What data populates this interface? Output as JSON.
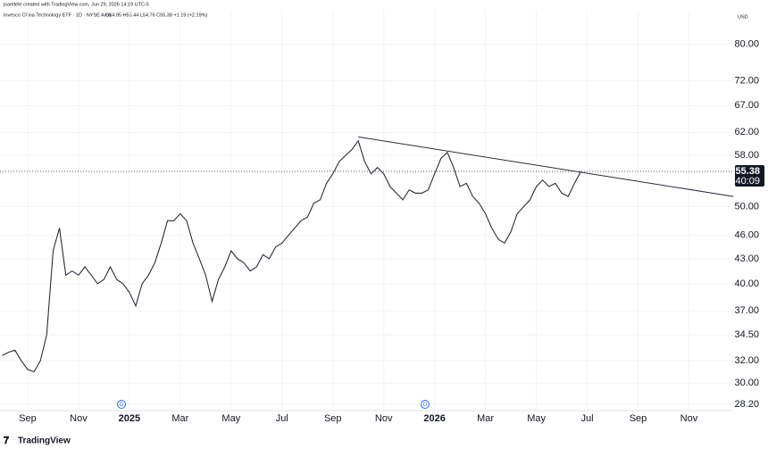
{
  "chart_data": {
    "type": "line",
    "attribution": "jsaettele created with TradingView.com, Jun 29, 2026 14:19 UTC-5",
    "title": "Invesco China Technology ETF · 1D · NYSE Arca",
    "ohlc_text": "O54.95 H55.44 L54.76 C55.38 +1.19 (+2.19%)",
    "currency": "USD",
    "log_scale": true,
    "grid": true,
    "ylim": [
      27.7,
      88.2
    ],
    "yticks": [
      {
        "value": 80,
        "label": "80.00"
      },
      {
        "value": 72,
        "label": "72.00"
      },
      {
        "value": 67,
        "label": "67.00"
      },
      {
        "value": 62,
        "label": "62.00"
      },
      {
        "value": 58,
        "label": "58.00"
      },
      {
        "value": 50,
        "label": "50.00"
      },
      {
        "value": 46,
        "label": "46.00"
      },
      {
        "value": 43,
        "label": "43.00"
      },
      {
        "value": 40,
        "label": "40.00"
      },
      {
        "value": 37,
        "label": "37.00"
      },
      {
        "value": 34.5,
        "label": "34.50"
      },
      {
        "value": 32,
        "label": "32.00"
      },
      {
        "value": 30,
        "label": "30.00"
      },
      {
        "value": 28.2,
        "label": "28.20"
      }
    ],
    "last_price": 55.38,
    "countdown": "40:09",
    "event_markers": [
      "D",
      "D"
    ],
    "logo": "TradingView",
    "categories": [
      null,
      null,
      null,
      null,
      "Sep",
      null,
      null,
      null,
      null,
      null,
      null,
      null,
      "Nov",
      null,
      null,
      null,
      null,
      null,
      null,
      null,
      "2025",
      null,
      null,
      null,
      null,
      null,
      null,
      null,
      "Mar",
      null,
      null,
      null,
      null,
      null,
      null,
      null,
      "May",
      null,
      null,
      null,
      null,
      null,
      null,
      null,
      "Jul",
      null,
      null,
      null,
      null,
      null,
      null,
      null,
      "Sep",
      null,
      null,
      null,
      null,
      null,
      null,
      null,
      "Nov",
      null,
      null,
      null,
      null,
      null,
      null,
      null,
      "2026",
      null,
      null,
      null,
      null,
      null,
      null,
      null,
      "Mar",
      null,
      null,
      null,
      null,
      null,
      null,
      null,
      "May",
      null,
      null,
      null,
      null,
      null,
      null,
      null,
      "Jul",
      null,
      null,
      null,
      null,
      null,
      null,
      null,
      "Sep",
      null,
      null,
      null,
      null,
      null,
      null,
      null,
      "Nov",
      null,
      null,
      null,
      null,
      null,
      null,
      null
    ],
    "series": [
      {
        "name": "Close",
        "color": "#2a2e39",
        "values": [
          32.5,
          32.8,
          33,
          32,
          31.2,
          31,
          32,
          34.5,
          44,
          47,
          41,
          41.5,
          41,
          42,
          41,
          40,
          40.5,
          42,
          40.5,
          40,
          39,
          37.5,
          40,
          41,
          42.5,
          45,
          48,
          48,
          49,
          48,
          45,
          43,
          41,
          38,
          40.5,
          42,
          44,
          43,
          42.5,
          41.5,
          42,
          43.5,
          43,
          44.5,
          45,
          46,
          47,
          48,
          48.5,
          50.5,
          51,
          53.5,
          55,
          57,
          58,
          59,
          60.5,
          57,
          55,
          56,
          55,
          53,
          52,
          51,
          52.5,
          52,
          52,
          52.5,
          55,
          57.5,
          58.5,
          56,
          53,
          53.5,
          51.5,
          50.5,
          49,
          47,
          45.5,
          45,
          46.5,
          49,
          50,
          51,
          53,
          54,
          53,
          53.5,
          52,
          51.5,
          53.5,
          55.38,
          null,
          null,
          null,
          null,
          null,
          null,
          null,
          null,
          null,
          null,
          null,
          null,
          null,
          null,
          null,
          null,
          null,
          null,
          null,
          null,
          null,
          null,
          null,
          null
        ]
      }
    ],
    "trendline": {
      "color": "#2a2e39",
      "x": [
        56,
        115
      ],
      "values": [
        61.2,
        51.5
      ]
    }
  }
}
